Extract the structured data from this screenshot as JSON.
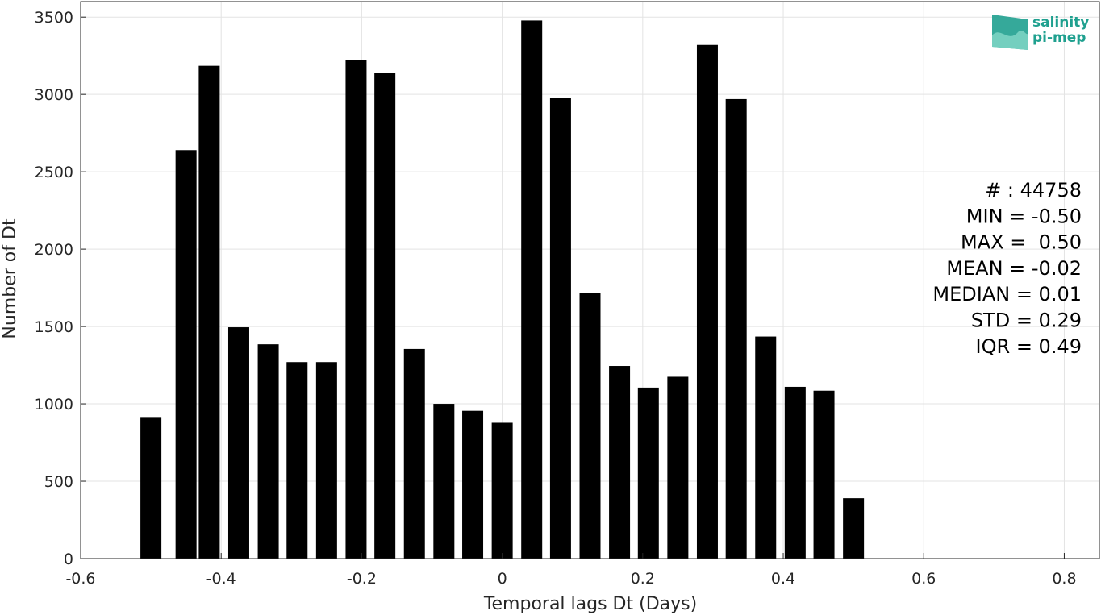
{
  "chart_data": {
    "type": "bar",
    "x": [
      -0.5,
      -0.45,
      -0.417,
      -0.375,
      -0.333,
      -0.292,
      -0.25,
      -0.208,
      -0.167,
      -0.125,
      -0.083,
      -0.042,
      0,
      0.042,
      0.083,
      0.125,
      0.167,
      0.208,
      0.25,
      0.292,
      0.333,
      0.375,
      0.417,
      0.458,
      0.5
    ],
    "values": [
      915,
      2640,
      3185,
      1495,
      1385,
      1270,
      1270,
      3220,
      3140,
      1355,
      1000,
      955,
      878,
      3478,
      2978,
      1715,
      1245,
      1105,
      1175,
      3320,
      2970,
      1435,
      1110,
      1085,
      390
    ],
    "xlabel": "Temporal lags Dt (Days)",
    "ylabel": "Number of Dt",
    "xlim": [
      -0.6,
      0.85
    ],
    "ylim": [
      0,
      3600
    ],
    "xticks": [
      "-0.6",
      "-0.4",
      "-0.2",
      "0",
      "0.2",
      "0.4",
      "0.6",
      "0.8"
    ],
    "yticks": [
      "0",
      "500",
      "1000",
      "1500",
      "2000",
      "2500",
      "3000",
      "3500"
    ],
    "grid": true,
    "bar_color": "#000000",
    "stats": [
      "# : 44758",
      "MIN = -0.50",
      "MAX =  0.50",
      "MEAN = -0.02",
      "MEDIAN = 0.01",
      "STD = 0.29",
      "IQR = 0.49"
    ]
  },
  "logo": {
    "line1": "salinity",
    "line2": "pi-mep",
    "color": "#1fa08f"
  }
}
